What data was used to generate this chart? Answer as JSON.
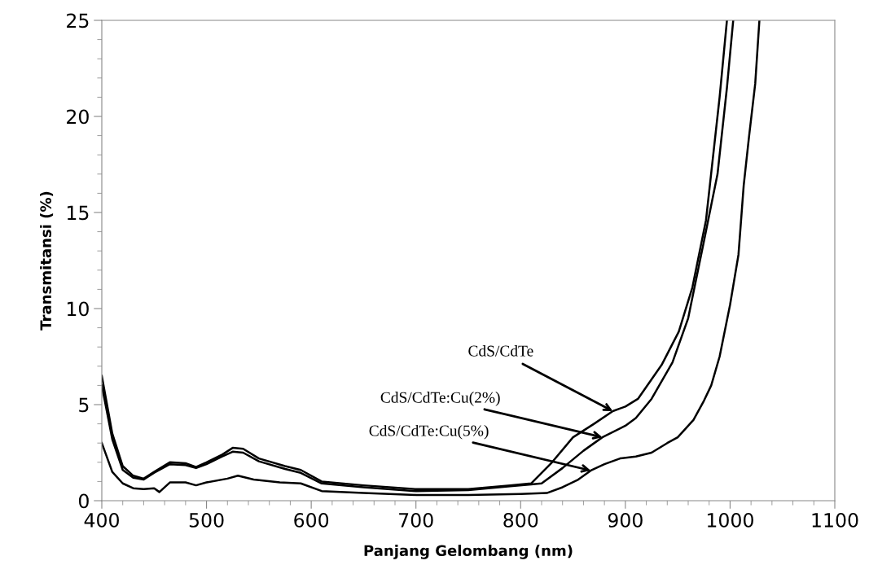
{
  "chart_data": {
    "type": "line",
    "xlabel": "Panjang Gelombang (nm)",
    "ylabel": "Transmitansi (%)",
    "xlim": [
      400,
      1100
    ],
    "xticks": [
      400,
      500,
      600,
      700,
      800,
      900,
      1000,
      1100
    ],
    "ylim": [
      0,
      25
    ],
    "yticks": [
      0,
      5,
      10,
      15,
      20,
      25
    ],
    "grid": false,
    "marker": "none",
    "line_style": "solid",
    "series": [
      {
        "color": "#000000",
        "x": [
          400,
          410,
          420,
          430,
          440,
          450,
          465,
          480,
          490,
          500,
          515,
          525,
          535,
          550,
          575,
          590,
          610,
          650,
          700,
          750,
          790,
          810,
          830,
          850,
          870,
          888,
          900,
          912,
          935,
          951,
          964,
          977,
          990,
          997
        ],
        "values": [
          6.5,
          3.5,
          1.8,
          1.3,
          1.15,
          1.5,
          2.0,
          1.95,
          1.75,
          2.0,
          2.4,
          2.75,
          2.7,
          2.2,
          1.8,
          1.6,
          1.0,
          0.8,
          0.6,
          0.6,
          0.8,
          0.9,
          2.0,
          3.3,
          4.0,
          4.66,
          4.9,
          5.3,
          7.1,
          8.8,
          11.1,
          14.6,
          21.0,
          25
        ]
      },
      {
        "color": "#000000",
        "x": [
          400,
          410,
          420,
          430,
          440,
          450,
          465,
          480,
          490,
          500,
          515,
          525,
          535,
          550,
          575,
          590,
          610,
          650,
          700,
          750,
          790,
          810,
          820,
          840,
          860,
          878,
          900,
          910,
          925,
          945,
          960,
          975,
          988,
          997,
          1003
        ],
        "values": [
          6.0,
          3.2,
          1.6,
          1.2,
          1.1,
          1.45,
          1.9,
          1.85,
          1.7,
          1.9,
          2.3,
          2.55,
          2.5,
          2.05,
          1.65,
          1.45,
          0.9,
          0.7,
          0.5,
          0.55,
          0.75,
          0.85,
          0.9,
          1.7,
          2.6,
          3.3,
          3.9,
          4.3,
          5.3,
          7.2,
          9.5,
          13.5,
          17.0,
          21.5,
          25
        ]
      },
      {
        "color": "#000000",
        "x": [
          400,
          410,
          420,
          430,
          440,
          450,
          455,
          465,
          480,
          490,
          500,
          520,
          530,
          545,
          570,
          590,
          610,
          650,
          700,
          750,
          800,
          825,
          840,
          855,
          867,
          880,
          895,
          910,
          925,
          940,
          950,
          965,
          975,
          982,
          990,
          1000,
          1008,
          1013,
          1018,
          1024,
          1028
        ],
        "values": [
          3.0,
          1.5,
          0.9,
          0.65,
          0.6,
          0.65,
          0.45,
          0.95,
          0.95,
          0.8,
          0.95,
          1.15,
          1.3,
          1.1,
          0.95,
          0.9,
          0.5,
          0.4,
          0.3,
          0.3,
          0.35,
          0.4,
          0.7,
          1.1,
          1.57,
          1.9,
          2.2,
          2.3,
          2.5,
          3.0,
          3.3,
          4.2,
          5.2,
          6.0,
          7.5,
          10.2,
          12.8,
          16.4,
          18.9,
          21.7,
          25
        ]
      }
    ],
    "annotations": [
      {
        "text": "CdS/CdTe",
        "x": 888,
        "y": 4.66
      },
      {
        "text": "CdS/CdTe:Cu(2%)",
        "x": 878,
        "y": 3.3
      },
      {
        "text": "CdS/CdTe:Cu(5%)",
        "x": 867,
        "y": 1.57
      }
    ]
  }
}
